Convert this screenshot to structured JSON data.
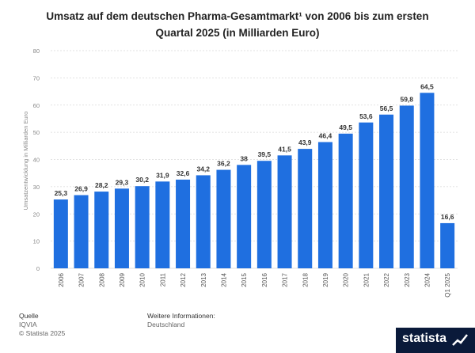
{
  "title_line1": "Umsatz auf dem deutschen Pharma-Gesamtmarkt¹ von 2006 bis zum ersten",
  "title_line2": "Quartal 2025 (in Milliarden Euro)",
  "colors": {
    "bar": "#1f6fe0",
    "grid": "#d9d9d9",
    "label": "#333333",
    "axis": "#888888"
  },
  "chart_data": {
    "type": "bar",
    "title": "Umsatz auf dem deutschen Pharma-Gesamtmarkt¹ von 2006 bis zum ersten Quartal 2025 (in Milliarden Euro)",
    "categories": [
      "2006",
      "2007",
      "2008",
      "2009",
      "2010",
      "2011",
      "2012",
      "2013",
      "2014",
      "2015",
      "2016",
      "2017",
      "2018",
      "2019",
      "2020",
      "2021",
      "2022",
      "2023",
      "2024",
      "Q1 2025"
    ],
    "values": [
      25.3,
      26.9,
      28.2,
      29.3,
      30.2,
      31.9,
      32.6,
      34.2,
      36.2,
      38,
      39.5,
      41.5,
      43.9,
      46.4,
      49.5,
      53.6,
      56.5,
      59.8,
      64.5,
      16.6
    ],
    "value_labels": [
      "25,3",
      "26,9",
      "28,2",
      "29,3",
      "30,2",
      "31,9",
      "32,6",
      "34,2",
      "36,2",
      "38",
      "39,5",
      "41,5",
      "43,9",
      "46,4",
      "49,5",
      "53,6",
      "56,5",
      "59,8",
      "64,5",
      "16,6"
    ],
    "ylabel": "Umsatzentwicklung in Milliarden Euro",
    "xlabel": "",
    "ylim": [
      0,
      80
    ],
    "yticks": [
      0,
      10,
      20,
      30,
      40,
      50,
      60,
      70,
      80
    ],
    "grid": true
  },
  "footer": {
    "source_label": "Quelle",
    "source_value": "IQVIA",
    "copyright": "© Statista 2025",
    "info_label": "Weitere Informationen:",
    "info_value": "Deutschland"
  },
  "logo": {
    "text": "statista"
  }
}
